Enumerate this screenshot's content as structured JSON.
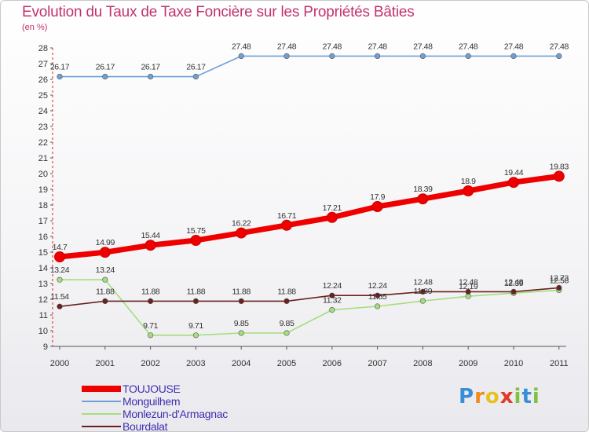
{
  "chart_data": {
    "type": "line",
    "title": "Evolution du Taux de Taxe Foncière sur les Propriétés Bâties",
    "ylabel": "(en %)",
    "xlabel": "",
    "categories": [
      "2000",
      "2001",
      "2002",
      "2003",
      "2004",
      "2005",
      "2006",
      "2007",
      "2008",
      "2009",
      "2010",
      "2011"
    ],
    "ylim": [
      9,
      28
    ],
    "yticks": [
      9,
      10,
      11,
      12,
      13,
      14,
      15,
      16,
      17,
      18,
      19,
      20,
      21,
      22,
      23,
      24,
      25,
      26,
      27,
      28
    ],
    "grid": false,
    "legend_position": "bottom-left",
    "series": [
      {
        "name": "TOUJOUSE",
        "color": "#ee0000",
        "width": "thick",
        "values": [
          14.7,
          14.99,
          15.44,
          15.75,
          16.22,
          16.71,
          17.21,
          17.9,
          18.39,
          18.9,
          19.44,
          19.83
        ],
        "labels": [
          "14.7",
          "14.99",
          "15.44",
          "15.75",
          "16.22",
          "16.71",
          "17.21",
          "17.9",
          "18.39",
          "18.9",
          "19.44",
          "19.83"
        ]
      },
      {
        "name": "Monguilhem",
        "color": "#6ea1d3",
        "width": "thin",
        "values": [
          26.17,
          26.17,
          26.17,
          26.17,
          27.48,
          27.48,
          27.48,
          27.48,
          27.48,
          27.48,
          27.48,
          27.48
        ],
        "labels": [
          "26.17",
          "26.17",
          "26.17",
          "26.17",
          "27.48",
          "27.48",
          "27.48",
          "27.48",
          "27.48",
          "27.48",
          "27.48",
          "27.48"
        ]
      },
      {
        "name": "Monlezun-d'Armagnac",
        "color": "#a6dd7c",
        "width": "thin",
        "values": [
          13.24,
          13.24,
          9.71,
          9.71,
          9.85,
          9.85,
          11.32,
          11.55,
          11.89,
          12.19,
          12.39,
          12.58
        ],
        "labels": [
          "13.24",
          "13.24",
          "9.71",
          "9.71",
          "9.85",
          "9.85",
          "11.32",
          "11.55",
          "11.89",
          "12.19",
          "12.39",
          "12.58"
        ]
      },
      {
        "name": "Bourdalat",
        "color": "#6b2020",
        "width": "thin",
        "values": [
          11.54,
          11.88,
          11.88,
          11.88,
          11.88,
          11.88,
          12.24,
          12.24,
          12.48,
          12.48,
          12.48,
          12.73
        ],
        "labels": [
          "11.54",
          "11.88",
          "11.88",
          "11.88",
          "11.88",
          "11.88",
          "12.24",
          "12.24",
          "12.48",
          "12.48",
          "12.48",
          "12.73"
        ]
      }
    ]
  },
  "logo": {
    "letters": [
      "P",
      "r",
      "o",
      "x",
      "i",
      "t",
      "i"
    ],
    "colors": [
      "#3a8ed6",
      "#f08a1c",
      "#e8c21c",
      "#e23a2a",
      "#7fc241",
      "#3a8ed6",
      "#7fc241"
    ]
  }
}
